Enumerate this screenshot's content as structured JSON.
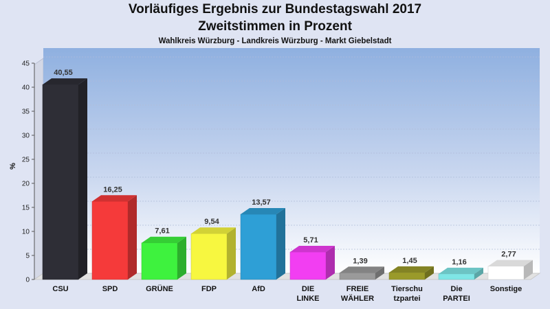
{
  "chart_data": {
    "type": "bar",
    "title": "Vorläufiges Ergebnis zur Bundestagswahl 2017",
    "subtitle": "Zweitstimmen in Prozent",
    "subsubtitle": "Wahlkreis Würzburg - Landkreis Würzburg - Markt Giebelstadt",
    "ylabel": "%",
    "xlabel": "",
    "ylim": [
      0,
      45
    ],
    "yticks": [
      0,
      5,
      10,
      15,
      20,
      25,
      30,
      35,
      40,
      45
    ],
    "grid": true,
    "categories": [
      [
        "CSU"
      ],
      [
        "SPD"
      ],
      [
        "GRÜNE"
      ],
      [
        "FDP"
      ],
      [
        "AfD"
      ],
      [
        "DIE",
        "LINKE"
      ],
      [
        "FREIE",
        "WÄHLER"
      ],
      [
        "Tierschu",
        "tzpartei"
      ],
      [
        "Die",
        "PARTEI"
      ],
      [
        "Sonstige"
      ]
    ],
    "values": [
      40.55,
      16.25,
      7.61,
      9.54,
      13.57,
      5.71,
      1.39,
      1.45,
      1.16,
      2.77
    ],
    "value_labels": [
      "40,55",
      "16,25",
      "7,61",
      "9,54",
      "13,57",
      "5,71",
      "1,39",
      "1,45",
      "1,16",
      "2,77"
    ],
    "colors": [
      "#2e2e36",
      "#f53a3a",
      "#3ef23e",
      "#f7f740",
      "#2e9fd6",
      "#f23ef2",
      "#9a9a9a",
      "#9a9a2a",
      "#7fe6e6",
      "#ffffff"
    ]
  }
}
